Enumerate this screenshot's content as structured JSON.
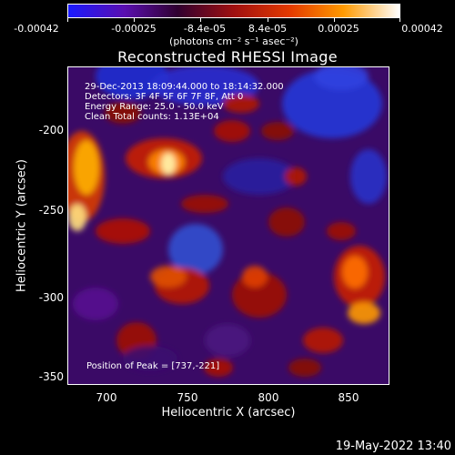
{
  "colorbar": {
    "tick_labels": [
      "-0.00042",
      "-0.00025",
      "-8.4e-05",
      "8.4e-05",
      "0.00025",
      "0.00042"
    ],
    "units": "(photons cm⁻² s⁻¹ asec⁻²)",
    "colors": [
      "#1a1aff",
      "#5a0fb0",
      "#300030",
      "#a01010",
      "#e43a00",
      "#ff9a00",
      "#ffffff"
    ]
  },
  "title": "Reconstructed RHESSI Image",
  "info_lines": [
    "29-Dec-2013 18:09:44.000 to 18:14:32.000",
    "Detectors: 3F 4F 5F 6F 7F 8F, Att 0",
    "Energy Range: 25.0 - 50.0 keV",
    "Clean     Total counts: 1.13E+04"
  ],
  "peak_label": "Position of Peak = [737,-221]",
  "axes": {
    "xlabel": "Heliocentric X (arcsec)",
    "ylabel": "Heliocentric Y (arcsec)",
    "xticks": [
      "700",
      "750",
      "800",
      "850"
    ],
    "yticks": [
      "-200",
      "-250",
      "-300",
      "-350"
    ]
  },
  "footer_date": "19-May-2022 13:40"
}
